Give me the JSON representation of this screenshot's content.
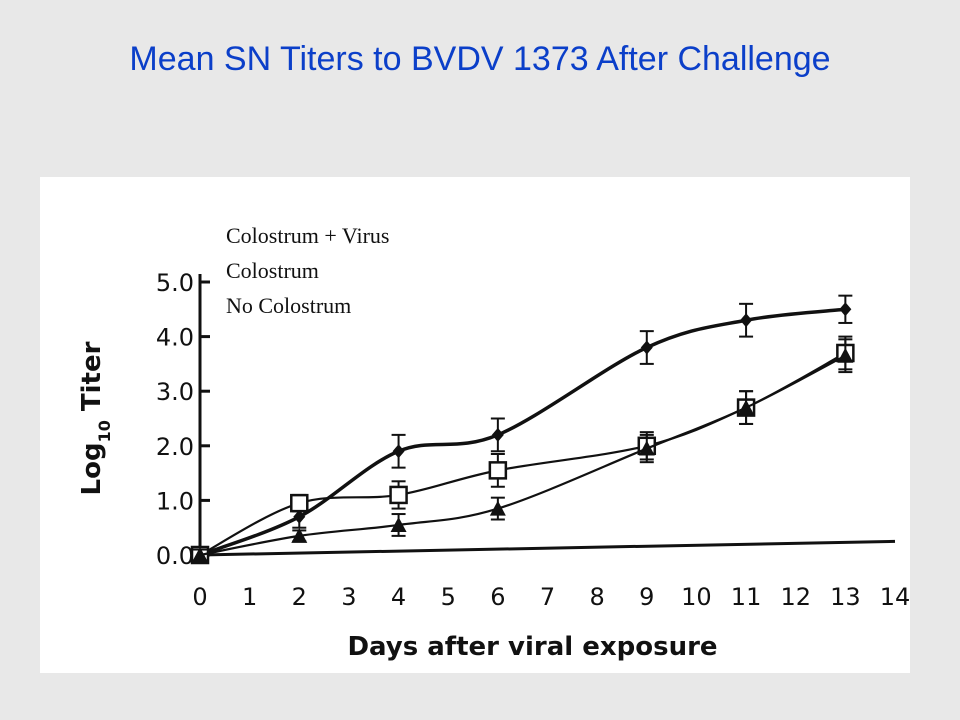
{
  "title": "Mean SN Titers to BVDV 1373 After Challenge",
  "chart_data": {
    "type": "line",
    "title": "Mean SN Titers to BVDV 1373 After Challenge",
    "xlabel": "Days after viral exposure",
    "ylabel": "Log10 Titer",
    "ylabel_main": "Log",
    "ylabel_sub": "10",
    "ylabel_tail": " Titer",
    "xlim": [
      0,
      14
    ],
    "ylim": [
      0,
      5
    ],
    "x_ticks": [
      0,
      1,
      2,
      3,
      4,
      5,
      6,
      7,
      8,
      9,
      10,
      11,
      12,
      13,
      14
    ],
    "y_ticks": [
      0,
      1,
      2,
      3,
      4,
      5
    ],
    "y_tick_labels": [
      "0.0",
      "1.0",
      "2.0",
      "3.0",
      "4.0",
      "5.0"
    ],
    "grid": false,
    "legend_position": "top-left",
    "series": [
      {
        "name": "Colostrum + Virus",
        "marker": "diamond",
        "x": [
          0,
          2,
          4,
          6,
          9,
          11,
          13
        ],
        "y": [
          0.0,
          0.7,
          1.9,
          2.2,
          3.8,
          4.3,
          4.5
        ],
        "err": [
          0.1,
          0.2,
          0.3,
          0.3,
          0.3,
          0.3,
          0.25
        ]
      },
      {
        "name": "Colostrum",
        "marker": "square",
        "x": [
          0,
          2,
          4,
          6,
          9,
          11,
          13
        ],
        "y": [
          0.0,
          0.95,
          1.1,
          1.55,
          2.0,
          2.7,
          3.7
        ],
        "err": [
          0.1,
          0.15,
          0.25,
          0.3,
          0.25,
          0.3,
          0.3
        ]
      },
      {
        "name": "No Colostrum",
        "marker": "triangle",
        "x": [
          0,
          2,
          4,
          6,
          9,
          11,
          13
        ],
        "y": [
          0.0,
          0.35,
          0.55,
          0.85,
          1.95,
          2.7,
          3.65
        ],
        "err": [
          0.1,
          0.1,
          0.2,
          0.2,
          0.25,
          0.3,
          0.3
        ]
      }
    ],
    "baseline": {
      "x": [
        0,
        14
      ],
      "y": [
        0.0,
        0.25
      ]
    }
  }
}
